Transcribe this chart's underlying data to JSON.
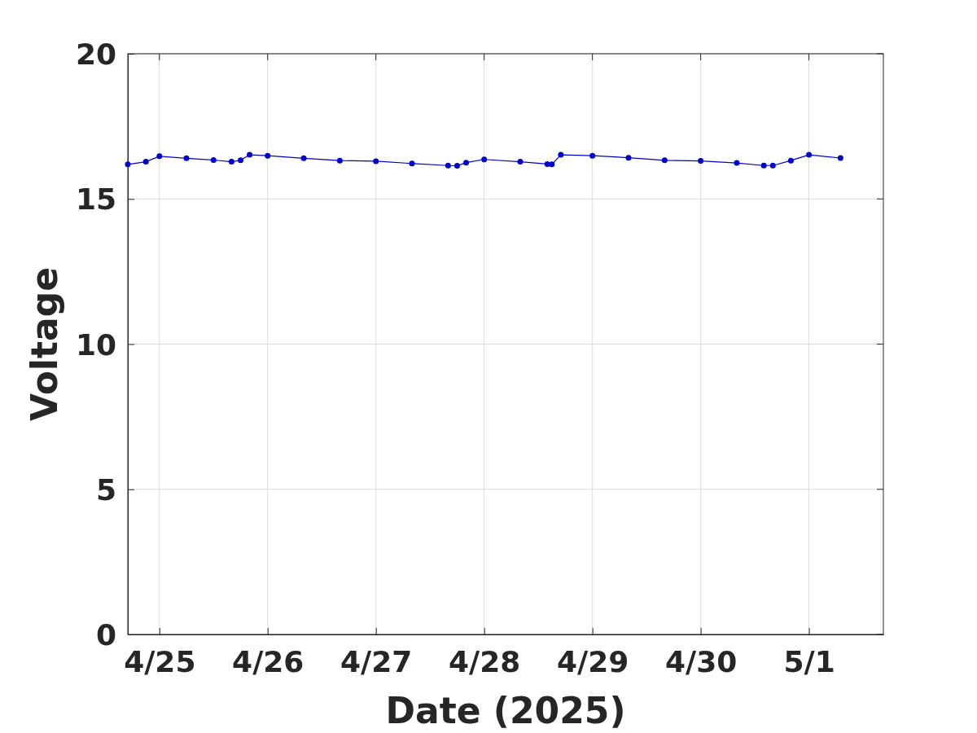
{
  "chart_data": {
    "type": "line",
    "xlabel": "Date (2025)",
    "ylabel": "Voltage",
    "x": [
      "2025-04-24T17:00",
      "2025-04-24T21:00",
      "2025-04-25T00:00",
      "2025-04-25T06:00",
      "2025-04-25T12:00",
      "2025-04-25T16:00",
      "2025-04-25T18:00",
      "2025-04-25T20:00",
      "2025-04-26T00:00",
      "2025-04-26T08:00",
      "2025-04-26T16:00",
      "2025-04-27T00:00",
      "2025-04-27T08:00",
      "2025-04-27T16:00",
      "2025-04-27T18:00",
      "2025-04-27T20:00",
      "2025-04-28T00:00",
      "2025-04-28T08:00",
      "2025-04-28T14:00",
      "2025-04-28T15:00",
      "2025-04-28T17:00",
      "2025-04-29T00:00",
      "2025-04-29T08:00",
      "2025-04-29T16:00",
      "2025-04-30T00:00",
      "2025-04-30T08:00",
      "2025-04-30T14:00",
      "2025-04-30T16:00",
      "2025-04-30T20:00",
      "2025-05-01T00:00",
      "2025-05-01T07:00"
    ],
    "series": [
      {
        "color": "#0000cd",
        "values": [
          16.19,
          16.28,
          16.47,
          16.4,
          16.34,
          16.28,
          16.33,
          16.52,
          16.49,
          16.4,
          16.32,
          16.3,
          16.22,
          16.15,
          16.14,
          16.25,
          16.36,
          16.28,
          16.2,
          16.19,
          16.52,
          16.49,
          16.42,
          16.33,
          16.31,
          16.24,
          16.15,
          16.15,
          16.32,
          16.52,
          16.41
        ]
      }
    ],
    "xlim": [
      "2025-04-24T17:00",
      "2025-05-01T16:30"
    ],
    "xticks": [
      {
        "value": "2025-04-25",
        "label": "4/25"
      },
      {
        "value": "2025-04-26",
        "label": "4/26"
      },
      {
        "value": "2025-04-27",
        "label": "4/27"
      },
      {
        "value": "2025-04-28",
        "label": "4/28"
      },
      {
        "value": "2025-04-29",
        "label": "4/29"
      },
      {
        "value": "2025-04-30",
        "label": "4/30"
      },
      {
        "value": "2025-05-01",
        "label": "5/1"
      }
    ],
    "ylim": [
      0,
      20
    ],
    "yticks": [
      0,
      5,
      10,
      15,
      20
    ],
    "grid": true,
    "marker": "circle",
    "line_style": "solid"
  }
}
